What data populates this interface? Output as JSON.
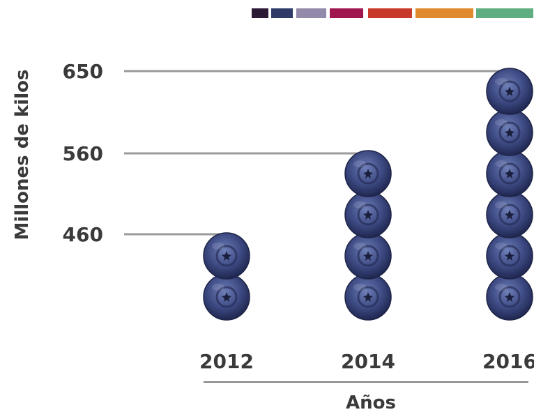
{
  "palette": [
    {
      "color": "#2b1a33"
    },
    {
      "color": "#2f3a66"
    },
    {
      "color": "#938aab"
    },
    {
      "color": "#a0174f"
    },
    {
      "color": "#c73a2b"
    },
    {
      "color": "#df8a2c"
    },
    {
      "color": "#5fae81"
    }
  ],
  "chart_data": {
    "type": "bar",
    "mark": "blueberry-icon",
    "categories": [
      "2012",
      "2014",
      "2016"
    ],
    "values": [
      460,
      560,
      650
    ],
    "icon_counts": [
      2,
      4,
      6
    ],
    "ylabel": "Millones de kilos",
    "xlabel": "Años",
    "yticks": [
      460,
      560,
      650
    ],
    "grid": false,
    "colors": {
      "berry": "#3d4a82",
      "leader_line": "#9a9a9a",
      "axis": "#7a7a7a",
      "text": "#3a3a3a"
    }
  }
}
